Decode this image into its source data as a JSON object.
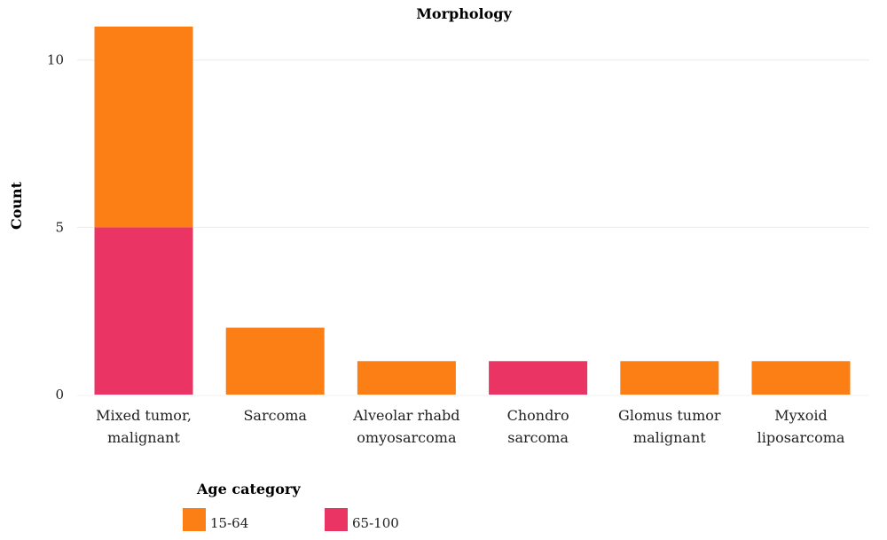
{
  "chart_data": {
    "type": "bar",
    "stacked": true,
    "title": "Morphology",
    "xlabel": "",
    "ylabel": "Count",
    "ylim": [
      0,
      11
    ],
    "yticks": [
      0,
      5,
      10
    ],
    "grid": true,
    "categories": [
      [
        "Mixed tumor,",
        "malignant"
      ],
      [
        "Sarcoma"
      ],
      [
        "Alveolar rhabd",
        "omyosarcoma"
      ],
      [
        "Chondro",
        "sarcoma"
      ],
      [
        "Glomus tumor",
        "malignant"
      ],
      [
        "Myxoid",
        "liposarcoma"
      ]
    ],
    "series": [
      {
        "name": "65-100",
        "color": "#ea3464",
        "values": [
          5,
          0,
          0,
          1,
          0,
          0
        ]
      },
      {
        "name": "15-64",
        "color": "#fb7f14",
        "values": [
          6,
          2,
          1,
          0,
          1,
          1
        ]
      }
    ],
    "legend": {
      "title": "Age category",
      "placement": "bottom-left",
      "entries": [
        {
          "label": "15-64",
          "color": "#fb7f14"
        },
        {
          "label": "65-100",
          "color": "#ea3464"
        }
      ]
    }
  }
}
